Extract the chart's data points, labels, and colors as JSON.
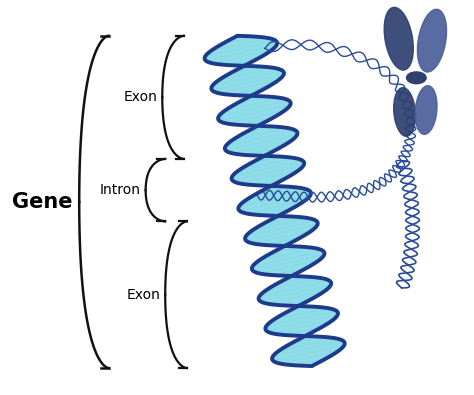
{
  "background_color": "#ffffff",
  "label_gene": "Gene",
  "label_intron": "Intron",
  "label_exon1": "Exon",
  "label_exon2": "Exon",
  "label_fontsize_gene": 15,
  "label_fontsize": 10,
  "strand_dark": "#1e3a8a",
  "fill_cyan": "#7dd8e6",
  "chromosome_dark": "#2d4070",
  "chromosome_mid": "#4a5f9a",
  "chromosome_light": "#6a7fb0",
  "loop_color": "#2a4a9a"
}
